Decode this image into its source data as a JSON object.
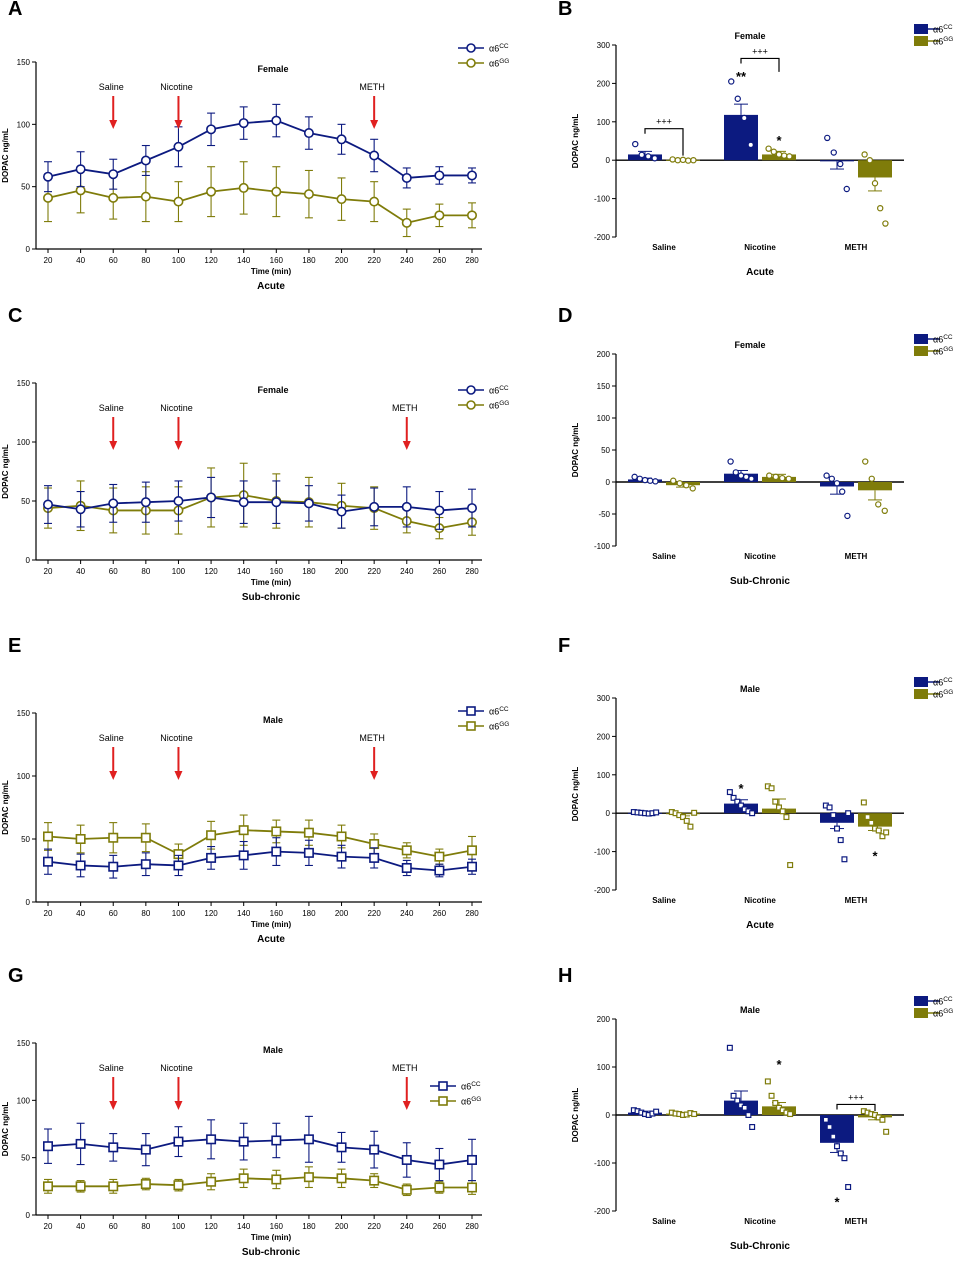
{
  "colors": {
    "cc": "#0c1a80",
    "gg": "#7f7c0a",
    "arrow": "#e02020",
    "axis": "#000000"
  },
  "legend": {
    "cc_base": "α6",
    "cc_sup": "CC",
    "gg_base": "α6",
    "gg_sup": "GG"
  },
  "chart_data": [
    {
      "panel": "A",
      "type": "line",
      "marker": "circle",
      "title": "Female",
      "xlabel": "Time (min)",
      "ylabel": "DOPAC ng/mL",
      "condition": "Acute",
      "ylim": [
        0,
        150
      ],
      "yticks": [
        0,
        50,
        100,
        150
      ],
      "x": [
        20,
        40,
        60,
        80,
        100,
        120,
        140,
        160,
        180,
        200,
        220,
        240,
        260,
        280
      ],
      "series": [
        {
          "name": "α6CC",
          "key": "cc",
          "values": [
            58,
            64,
            60,
            71,
            82,
            96,
            101,
            103,
            93,
            88,
            75,
            57,
            59,
            59
          ],
          "err": [
            12,
            14,
            12,
            12,
            16,
            13,
            13,
            13,
            13,
            12,
            13,
            8,
            7,
            6
          ]
        },
        {
          "name": "α6GG",
          "key": "gg",
          "values": [
            41,
            47,
            41,
            42,
            38,
            46,
            49,
            46,
            44,
            40,
            38,
            21,
            27,
            27
          ],
          "err": [
            19,
            18,
            17,
            20,
            16,
            20,
            21,
            20,
            19,
            17,
            16,
            11,
            9,
            10
          ]
        }
      ],
      "arrows": [
        {
          "label": "Saline",
          "x": 60
        },
        {
          "label": "Nicotine",
          "x": 100
        },
        {
          "label": "METH",
          "x": 220
        }
      ]
    },
    {
      "panel": "B",
      "type": "bar",
      "title": "Female",
      "ylabel": "DOPAC ng/mL",
      "xlabel": "Acute",
      "ylim": [
        -200,
        300
      ],
      "yticks": [
        -200,
        -100,
        0,
        100,
        200,
        300
      ],
      "categories": [
        "Saline",
        "Nicotine",
        "METH"
      ],
      "series": [
        {
          "name": "α6CC",
          "key": "cc",
          "values": [
            15,
            118,
            -3
          ],
          "err": [
            8,
            28,
            20
          ],
          "points": [
            [
              42,
              14,
              10,
              5
            ],
            [
              205,
              160,
              110,
              40
            ],
            [
              58,
              20,
              -10,
              -75
            ]
          ]
        },
        {
          "name": "α6GG",
          "key": "gg",
          "values": [
            1,
            15,
            -45
          ],
          "err": [
            2,
            8,
            35
          ],
          "points": [
            [
              2,
              0,
              1,
              -1,
              0
            ],
            [
              30,
              22,
              15,
              12,
              10
            ],
            [
              15,
              0,
              -60,
              -125,
              -165
            ]
          ]
        }
      ],
      "annotations": [
        {
          "text": "**",
          "cat": 1,
          "series": 0,
          "y": 222
        },
        {
          "text": "*",
          "cat": 1,
          "series": 1,
          "y": 55
        }
      ],
      "brackets": [
        {
          "label": "+++",
          "from": [
            0,
            0
          ],
          "to": [
            0,
            1
          ],
          "y": 82,
          "drop": 12
        },
        {
          "label": "+++",
          "from": [
            1,
            0
          ],
          "to": [
            1,
            1
          ],
          "y": 265,
          "drop": 230
        }
      ]
    },
    {
      "panel": "C",
      "type": "line",
      "marker": "circle",
      "title": "Female",
      "xlabel": "Time (min)",
      "ylabel": "DOPAC ng/mL",
      "condition": "Sub-chronic",
      "ylim": [
        0,
        150
      ],
      "yticks": [
        0,
        50,
        100,
        150
      ],
      "x": [
        20,
        40,
        60,
        80,
        100,
        120,
        140,
        160,
        180,
        200,
        220,
        240,
        260,
        280
      ],
      "series": [
        {
          "name": "α6CC",
          "key": "cc",
          "values": [
            47,
            43,
            48,
            49,
            50,
            53,
            49,
            49,
            48,
            41,
            45,
            45,
            42,
            44
          ],
          "err": [
            16,
            15,
            16,
            17,
            17,
            17,
            18,
            18,
            15,
            14,
            16,
            17,
            16,
            16
          ]
        },
        {
          "name": "α6GG",
          "key": "gg",
          "values": [
            44,
            46,
            42,
            42,
            42,
            53,
            55,
            50,
            49,
            46,
            44,
            33,
            27,
            32
          ],
          "err": [
            17,
            21,
            19,
            20,
            20,
            25,
            27,
            23,
            21,
            19,
            18,
            10,
            9,
            11
          ]
        }
      ],
      "arrows": [
        {
          "label": "Saline",
          "x": 60
        },
        {
          "label": "Nicotine",
          "x": 100
        },
        {
          "label": "METH",
          "x": 240
        }
      ]
    },
    {
      "panel": "D",
      "type": "bar",
      "title": "Female",
      "ylabel": "DOPAC ng/mL",
      "xlabel": "Sub-Chronic",
      "ylim": [
        -100,
        200
      ],
      "yticks": [
        -100,
        -50,
        0,
        50,
        100,
        150,
        200
      ],
      "categories": [
        "Saline",
        "Nicotine",
        "METH"
      ],
      "series": [
        {
          "name": "α6CC",
          "key": "cc",
          "values": [
            4,
            13,
            -7
          ],
          "err": [
            2,
            5,
            12
          ],
          "points": [
            [
              8,
              5,
              3,
              2,
              1
            ],
            [
              32,
              15,
              10,
              8,
              5
            ],
            [
              10,
              5,
              -2,
              -15,
              -53
            ]
          ]
        },
        {
          "name": "α6GG",
          "key": "gg",
          "values": [
            -5,
            8,
            -13
          ],
          "err": [
            3,
            4,
            15
          ],
          "points": [
            [
              2,
              -2,
              -5,
              -10
            ],
            [
              10,
              8,
              6,
              5
            ],
            [
              32,
              5,
              -35,
              -45
            ]
          ]
        }
      ],
      "annotations": [],
      "brackets": []
    },
    {
      "panel": "E",
      "type": "line",
      "marker": "square",
      "title": "Male",
      "xlabel": "Time (min)",
      "ylabel": "DOPAC ng/mL",
      "condition": "Acute",
      "ylim": [
        0,
        150
      ],
      "yticks": [
        0,
        50,
        100,
        150
      ],
      "x": [
        20,
        40,
        60,
        80,
        100,
        120,
        140,
        160,
        180,
        200,
        220,
        240,
        260,
        280
      ],
      "series": [
        {
          "name": "α6CC",
          "key": "cc",
          "values": [
            32,
            29,
            28,
            30,
            29,
            35,
            37,
            40,
            39,
            36,
            35,
            27,
            25,
            28
          ],
          "err": [
            10,
            9,
            9,
            9,
            8,
            9,
            11,
            11,
            10,
            9,
            8,
            6,
            5,
            6
          ]
        },
        {
          "name": "α6GG",
          "key": "gg",
          "values": [
            52,
            50,
            51,
            51,
            38,
            53,
            57,
            56,
            55,
            52,
            46,
            41,
            36,
            41
          ],
          "err": [
            11,
            11,
            12,
            11,
            8,
            11,
            12,
            9,
            10,
            9,
            8,
            6,
            6,
            11
          ]
        }
      ],
      "arrows": [
        {
          "label": "Saline",
          "x": 60
        },
        {
          "label": "Nicotine",
          "x": 100
        },
        {
          "label": "METH",
          "x": 220
        }
      ]
    },
    {
      "panel": "F",
      "type": "bar",
      "title": "Male",
      "ylabel": "DOPAC ng/mL",
      "xlabel": "Acute",
      "ylim": [
        -200,
        300
      ],
      "yticks": [
        -200,
        -100,
        0,
        100,
        200,
        300
      ],
      "categories": [
        "Saline",
        "Nicotine",
        "METH"
      ],
      "series": [
        {
          "name": "α6CC",
          "key": "cc",
          "values": [
            1,
            25,
            -25
          ],
          "err": [
            2,
            10,
            15
          ],
          "points": [
            [
              3,
              2,
              1,
              0,
              -1,
              0,
              2
            ],
            [
              55,
              40,
              30,
              20,
              10,
              5,
              0
            ],
            [
              20,
              15,
              -5,
              -40,
              -70,
              -120,
              0
            ]
          ]
        },
        {
          "name": "α6GG",
          "key": "gg",
          "values": [
            -2,
            12,
            -35
          ],
          "err": [
            5,
            25,
            10
          ],
          "points": [
            [
              3,
              0,
              -5,
              -10,
              -20,
              -35,
              1
            ],
            [
              70,
              65,
              30,
              15,
              5,
              -10,
              -135
            ],
            [
              28,
              -10,
              -25,
              -40,
              -45,
              -60,
              -50
            ]
          ]
        }
      ],
      "annotations": [
        {
          "text": "*",
          "cat": 1,
          "series": 0,
          "y": 68
        },
        {
          "text": "*",
          "cat": 2,
          "series": 1,
          "y": -108
        }
      ],
      "brackets": []
    },
    {
      "panel": "G",
      "type": "line",
      "marker": "square",
      "title": "Male",
      "xlabel": "Time (min)",
      "ylabel": "DOPAC ng/mL",
      "condition": "Sub-chronic",
      "ylim": [
        0,
        150
      ],
      "yticks": [
        0,
        50,
        100,
        150
      ],
      "x": [
        20,
        40,
        60,
        80,
        100,
        120,
        140,
        160,
        180,
        200,
        220,
        240,
        260,
        280
      ],
      "series": [
        {
          "name": "α6CC",
          "key": "cc",
          "values": [
            60,
            62,
            59,
            57,
            64,
            66,
            64,
            65,
            66,
            59,
            57,
            48,
            44,
            48
          ],
          "err": [
            15,
            18,
            12,
            14,
            13,
            17,
            16,
            15,
            20,
            13,
            16,
            15,
            14,
            18
          ]
        },
        {
          "name": "α6GG",
          "key": "gg",
          "values": [
            25,
            25,
            25,
            27,
            26,
            29,
            32,
            31,
            33,
            32,
            30,
            22,
            24,
            24
          ],
          "err": [
            6,
            5,
            6,
            5,
            5,
            7,
            8,
            8,
            9,
            8,
            6,
            5,
            5,
            6
          ]
        }
      ],
      "arrows": [
        {
          "label": "Saline",
          "x": 60
        },
        {
          "label": "Nicotine",
          "x": 100
        },
        {
          "label": "METH",
          "x": 240
        }
      ]
    },
    {
      "panel": "H",
      "type": "bar",
      "title": "Male",
      "ylabel": "DOPAC ng/mL",
      "xlabel": "Sub-Chronic",
      "ylim": [
        -200,
        200
      ],
      "yticks": [
        -200,
        -100,
        0,
        100,
        200
      ],
      "categories": [
        "Saline",
        "Nicotine",
        "METH"
      ],
      "series": [
        {
          "name": "α6CC",
          "key": "cc",
          "values": [
            5,
            30,
            -58
          ],
          "err": [
            3,
            20,
            20
          ],
          "points": [
            [
              10,
              8,
              5,
              2,
              0,
              3,
              7
            ],
            [
              140,
              40,
              30,
              20,
              15,
              0,
              -25
            ],
            [
              -10,
              -25,
              -45,
              -65,
              -80,
              -90,
              -150
            ]
          ]
        },
        {
          "name": "α6GG",
          "key": "gg",
          "values": [
            3,
            18,
            -5
          ],
          "err": [
            2,
            8,
            5
          ],
          "points": [
            [
              5,
              3,
              2,
              0,
              1,
              4,
              2
            ],
            [
              70,
              40,
              25,
              15,
              10,
              5,
              2
            ],
            [
              8,
              5,
              2,
              0,
              -5,
              -10,
              -35
            ]
          ]
        }
      ],
      "annotations": [
        {
          "text": "*",
          "cat": 1,
          "series": 1,
          "y": 108
        },
        {
          "text": "*",
          "cat": 2,
          "series": 0,
          "y": -178
        }
      ],
      "brackets": [
        {
          "label": "+++",
          "from": [
            2,
            0
          ],
          "to": [
            2,
            1
          ],
          "y": 22,
          "drop": 8
        }
      ]
    }
  ]
}
